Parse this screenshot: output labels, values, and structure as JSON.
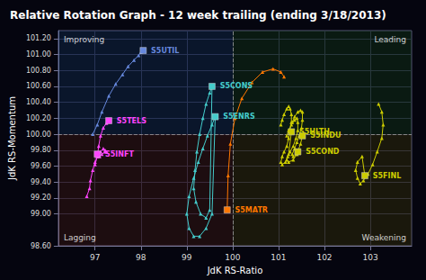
{
  "chart_data": {
    "type": "line",
    "title": "Relative Rotation Graph - 12 week trailing (ending 3/18/2013)",
    "xlabel": "JdK RS-Ratio",
    "ylabel": "JdK RS-Momentum",
    "xlim": [
      96.2,
      103.9
    ],
    "ylim": [
      98.6,
      101.3
    ],
    "xticks": [
      97,
      98,
      99,
      100,
      101,
      102,
      103
    ],
    "yticks": [
      {
        "value": 98.6,
        "label": "98.60"
      },
      {
        "value": 99.0,
        "label": "99.00"
      },
      {
        "value": 99.2,
        "label": "99.20"
      },
      {
        "value": 99.4,
        "label": "99.40"
      },
      {
        "value": 99.6,
        "label": "99.60"
      },
      {
        "value": 99.8,
        "label": "99.80"
      },
      {
        "value": 100.0,
        "label": "100.00"
      },
      {
        "value": 100.2,
        "label": "100.20"
      },
      {
        "value": 100.4,
        "label": "100.40"
      },
      {
        "value": 100.6,
        "label": "100.60"
      },
      {
        "value": 100.8,
        "label": "100.80"
      },
      {
        "value": 101.0,
        "label": "101.00"
      },
      {
        "value": 101.2,
        "label": "101.20"
      }
    ],
    "grid": true,
    "marker": "triangle",
    "x_center": 100.0,
    "y_center": 100.0,
    "annotations": [
      "Improving",
      "Leading",
      "Lagging",
      "Weakening"
    ],
    "series": [
      {
        "name": "S5UTIL",
        "color": "#6688dd",
        "x": [
          96.95,
          97.05,
          97.15,
          97.3,
          97.45,
          97.6,
          97.72,
          97.85,
          97.95,
          98.0,
          98.05
        ],
        "values": [
          100.0,
          100.12,
          100.28,
          100.48,
          100.63,
          100.75,
          100.85,
          100.93,
          100.99,
          101.03,
          101.05
        ]
      },
      {
        "name": "S5TELS",
        "color": "#ff44ff",
        "x": [
          97.0,
          97.05,
          97.08,
          97.12,
          97.18,
          97.25,
          97.3
        ],
        "values": [
          99.62,
          99.72,
          99.85,
          99.98,
          100.08,
          100.14,
          100.17
        ]
      },
      {
        "name": "S5INFT",
        "color": "#ff44ff",
        "x": [
          96.82,
          96.88,
          96.9,
          96.95,
          97.0,
          97.05,
          97.12,
          97.18,
          97.22,
          97.25,
          97.22,
          97.15,
          97.1,
          97.05
        ],
        "values": [
          99.22,
          99.32,
          99.42,
          99.55,
          99.65,
          99.72,
          99.78,
          99.82,
          99.8,
          99.78,
          99.78,
          99.75,
          99.72,
          99.75
        ]
      },
      {
        "name": "S5CONS",
        "color": "#44cccc",
        "x": [
          99.55,
          99.5,
          99.42,
          99.35,
          99.28,
          99.22,
          99.18,
          99.15,
          99.2,
          99.3,
          99.42,
          99.5,
          99.55
        ],
        "values": [
          100.6,
          100.52,
          100.38,
          100.2,
          100.0,
          99.78,
          99.55,
          99.32,
          99.15,
          99.0,
          98.95,
          99.05,
          100.6
        ]
      },
      {
        "name": "S5ENRS",
        "color": "#44cccc",
        "x": [
          99.62,
          99.55,
          99.45,
          99.35,
          99.25,
          99.15,
          99.05,
          99.0,
          99.05,
          99.15,
          99.28,
          99.42,
          99.55,
          99.62
        ],
        "values": [
          100.22,
          100.12,
          99.98,
          99.82,
          99.65,
          99.45,
          99.22,
          99.0,
          98.82,
          98.72,
          98.72,
          98.82,
          99.0,
          100.22
        ]
      },
      {
        "name": "S5MATR",
        "color": "#ff7700",
        "x": [
          101.12,
          101.05,
          100.88,
          100.65,
          100.42,
          100.2,
          100.05,
          99.95,
          99.9,
          99.88
        ],
        "values": [
          100.72,
          100.78,
          100.82,
          100.78,
          100.65,
          100.45,
          100.2,
          99.88,
          99.48,
          99.05
        ]
      },
      {
        "name": "S5HLTH",
        "color": "#cccc00",
        "x": [
          101.05,
          101.08,
          101.12,
          101.18,
          101.22,
          101.25,
          101.28,
          101.28,
          101.25,
          101.22,
          101.18,
          101.12,
          101.08,
          101.05,
          101.08,
          101.15,
          101.22,
          101.28
        ],
        "values": [
          100.12,
          100.18,
          100.25,
          100.32,
          100.35,
          100.32,
          100.25,
          100.15,
          100.05,
          99.95,
          99.85,
          99.78,
          99.72,
          99.65,
          99.62,
          99.65,
          99.75,
          100.03
        ]
      },
      {
        "name": "S5INDU",
        "color": "#cccc00",
        "x": [
          101.3,
          101.35,
          101.42,
          101.48,
          101.52,
          101.52,
          101.5,
          101.45,
          101.4,
          101.35,
          101.3,
          101.32,
          101.4,
          101.48,
          101.52
        ],
        "values": [
          100.15,
          100.22,
          100.28,
          100.3,
          100.28,
          100.18,
          100.08,
          99.98,
          99.9,
          99.82,
          99.75,
          99.72,
          99.75,
          99.88,
          99.98
        ]
      },
      {
        "name": "S5COND",
        "color": "#cccc00",
        "x": [
          101.18,
          101.22,
          101.28,
          101.35,
          101.4,
          101.42,
          101.42,
          101.38,
          101.32,
          101.25,
          101.2,
          101.18,
          101.22,
          101.32,
          101.4,
          101.42
        ],
        "values": [
          99.98,
          100.05,
          100.12,
          100.18,
          100.2,
          100.15,
          100.05,
          99.95,
          99.85,
          99.78,
          99.72,
          99.68,
          99.65,
          99.68,
          99.75,
          99.78
        ]
      },
      {
        "name": "S5FINL",
        "color": "#cccc00",
        "x": [
          103.18,
          103.25,
          103.28,
          103.25,
          103.15,
          103.05,
          102.95,
          102.85,
          102.78,
          102.72,
          102.68,
          102.72,
          102.82,
          102.88
        ],
        "values": [
          100.38,
          100.28,
          100.12,
          99.95,
          99.78,
          99.62,
          99.5,
          99.42,
          99.38,
          99.45,
          99.55,
          99.65,
          99.72,
          99.48
        ]
      }
    ]
  }
}
